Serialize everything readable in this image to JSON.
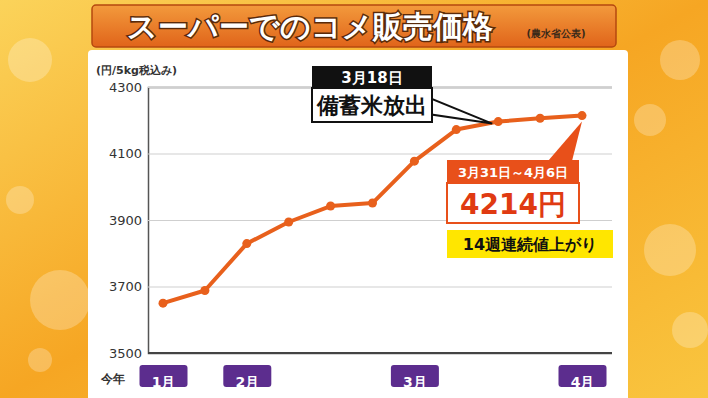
{
  "chart_data": {
    "type": "line",
    "title": "スーパーでのコメ販売価格",
    "subtitle": "(農水省公表)",
    "ylabel": "(円/5kg税込み)",
    "xlabel": "今年",
    "categories": [
      "1月",
      null,
      "2月",
      null,
      null,
      null,
      "3月",
      null,
      null,
      null,
      "4月"
    ],
    "values": [
      3650,
      3688,
      3829,
      3894,
      3942,
      3951,
      4077,
      4172,
      4196,
      4206,
      4214
    ],
    "color": "#e8601c",
    "marker": "circle",
    "ylim": [
      3500,
      4300
    ],
    "yticks": [
      3500,
      3700,
      3900,
      4100,
      4300
    ],
    "grid": true,
    "annotations": [
      {
        "date": "3月18日",
        "text": "備蓄米放出"
      },
      {
        "date": "3月31日～4月6日",
        "text": "4214円",
        "note": "14週連続値上がり"
      }
    ]
  }
}
